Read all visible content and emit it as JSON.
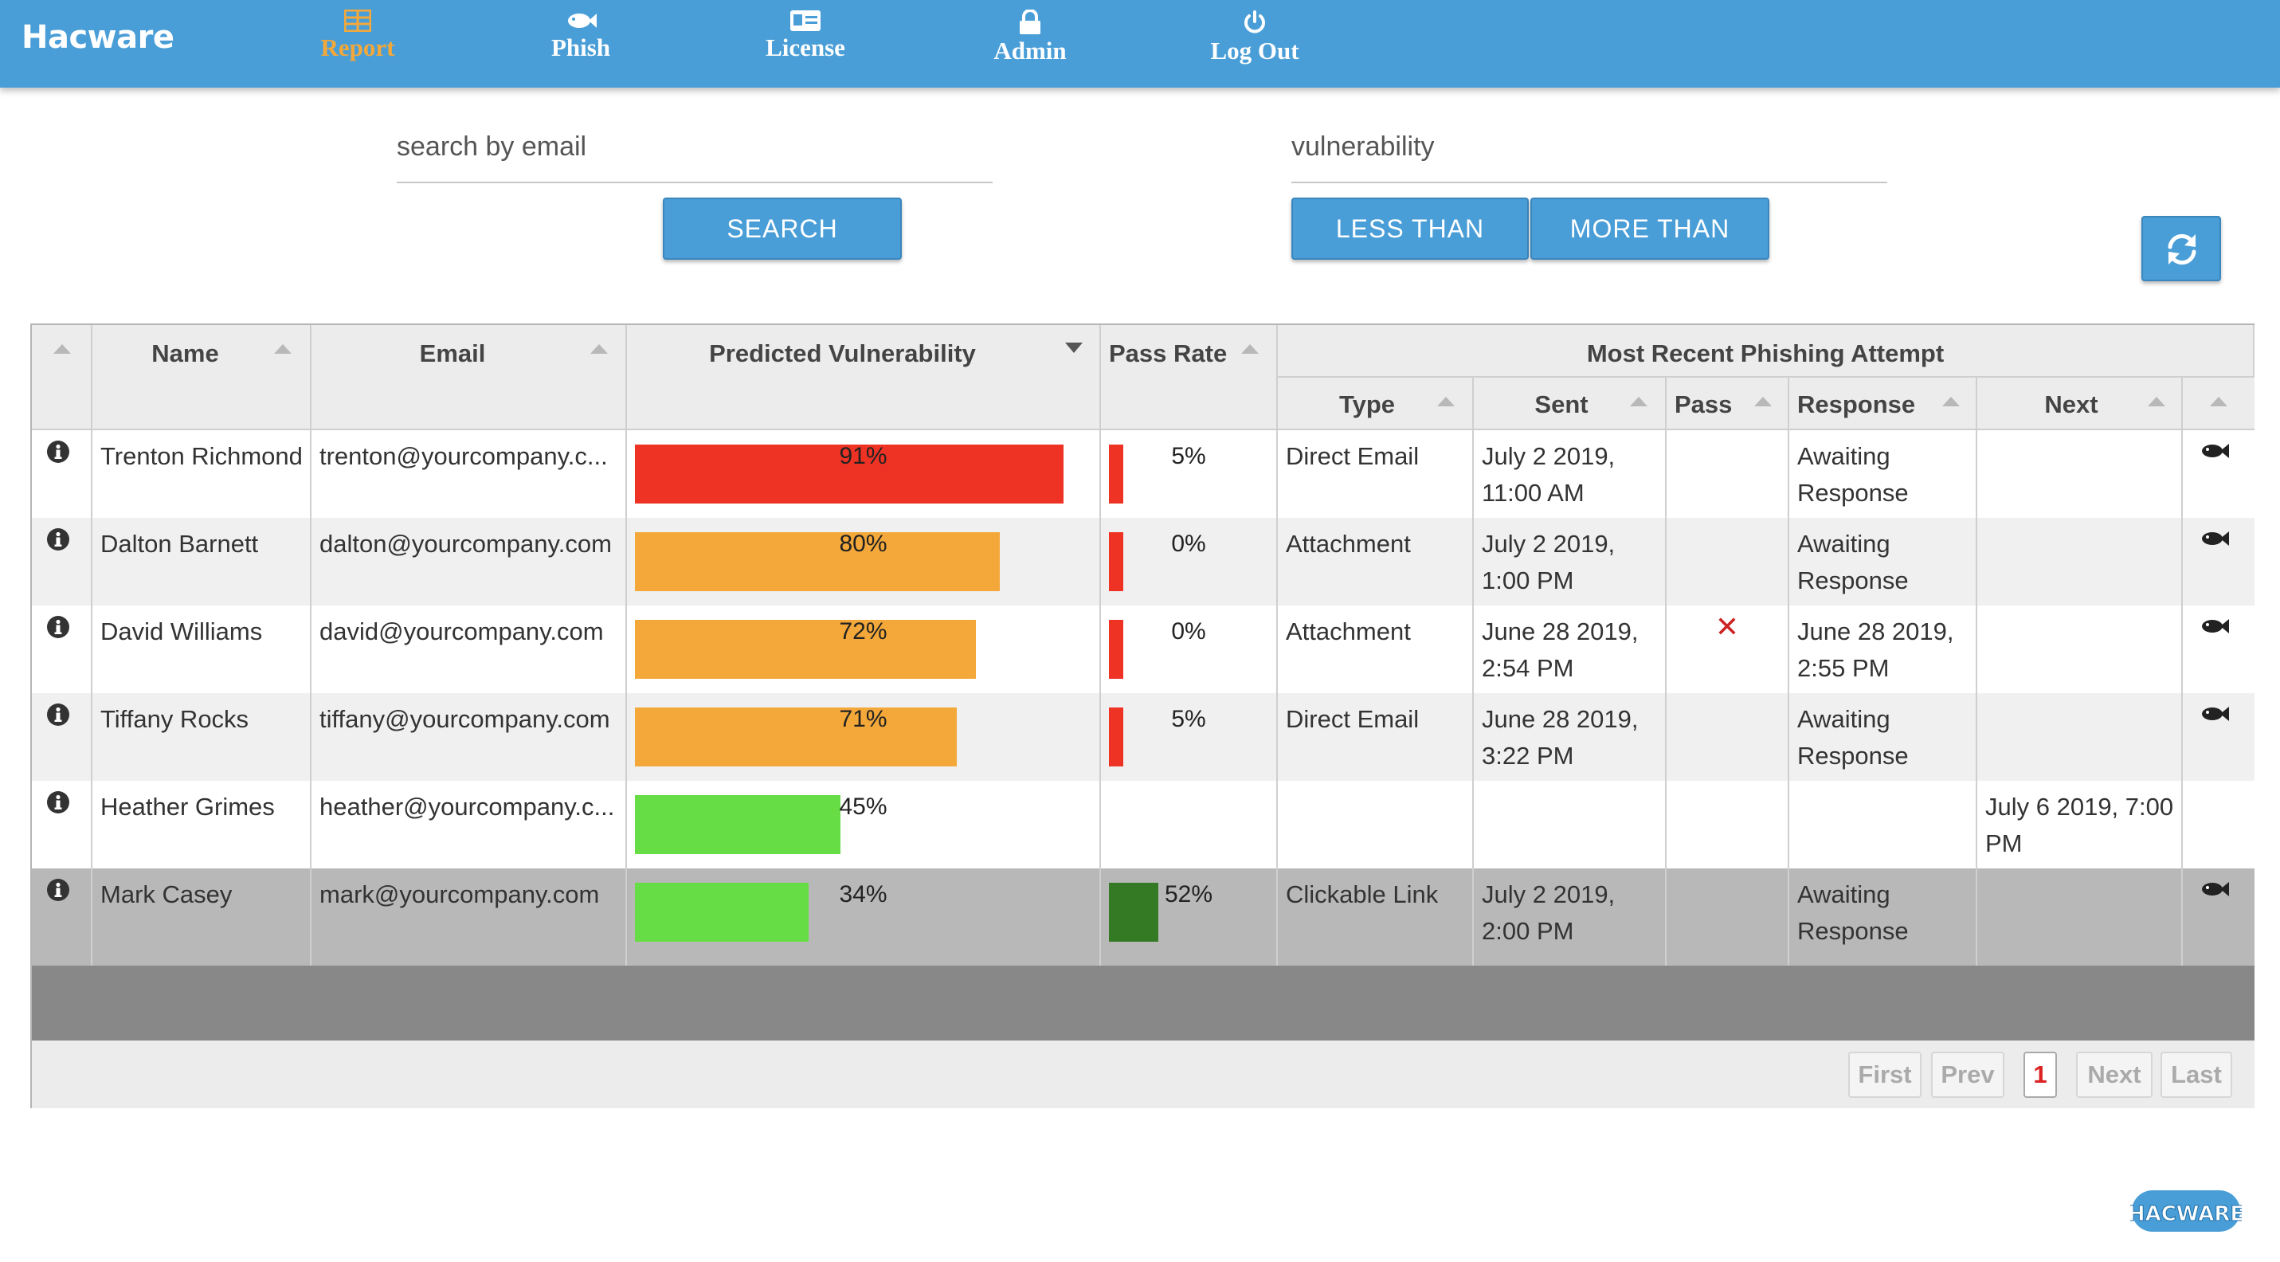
{
  "brand": "Hacware",
  "nav": [
    {
      "label": "Report",
      "icon": "table-icon",
      "active": true
    },
    {
      "label": "Phish",
      "icon": "fish-icon"
    },
    {
      "label": "License",
      "icon": "id-card-icon"
    },
    {
      "label": "Admin",
      "icon": "lock-icon"
    },
    {
      "label": "Log Out",
      "icon": "power-icon"
    }
  ],
  "search": {
    "email_placeholder": "search by email",
    "vuln_placeholder": "vulnerability",
    "search_label": "SEARCH",
    "less_label": "LESS THAN",
    "more_label": "MORE THAN"
  },
  "headers": {
    "name": "Name",
    "email": "Email",
    "vulnerability": "Predicted Vulnerability",
    "pass_rate": "Pass Rate",
    "group": "Most Recent Phishing Attempt",
    "type": "Type",
    "sent": "Sent",
    "pass": "Pass",
    "response": "Response",
    "next": "Next"
  },
  "rows": [
    {
      "name": "Trenton Richmond",
      "email": "trenton@yourcompany.c...",
      "vuln": 91,
      "vuln_label": "91%",
      "vuln_color": "#ee3224",
      "pass_rate": 5,
      "pass_label": "5%",
      "pass_color": "#ee3224",
      "type": "Direct Email",
      "sent": "July 2 2019, 11:00 AM",
      "pass": "",
      "response": "Awaiting Response",
      "next": "",
      "fish": true
    },
    {
      "name": "Dalton Barnett",
      "email": "dalton@yourcompany.com",
      "vuln": 80,
      "vuln_label": "80%",
      "vuln_color": "#f4a83a",
      "pass_rate": 0,
      "pass_label": "0%",
      "pass_color": "#ee3224",
      "type": "Attachment",
      "sent": "July 2 2019, 1:00 PM",
      "pass": "",
      "response": "Awaiting Response",
      "next": "",
      "fish": true
    },
    {
      "name": "David Williams",
      "email": "david@yourcompany.com",
      "vuln": 72,
      "vuln_label": "72%",
      "vuln_color": "#f4a83a",
      "pass_rate": 0,
      "pass_label": "0%",
      "pass_color": "#ee3224",
      "type": "Attachment",
      "sent": "June 28 2019, 2:54 PM",
      "pass": "✕",
      "response": "June 28 2019, 2:55 PM",
      "next": "",
      "fish": true
    },
    {
      "name": "Tiffany Rocks",
      "email": "tiffany@yourcompany.com",
      "vuln": 71,
      "vuln_label": "71%",
      "vuln_color": "#f4a83a",
      "pass_rate": 5,
      "pass_label": "5%",
      "pass_color": "#ee3224",
      "type": "Direct Email",
      "sent": "June 28 2019, 3:22 PM",
      "pass": "",
      "response": "Awaiting Response",
      "next": "",
      "fish": true
    },
    {
      "name": "Heather Grimes",
      "email": "heather@yourcompany.c...",
      "vuln": 45,
      "vuln_label": "45%",
      "vuln_color": "#66dd44",
      "pass_rate": null,
      "pass_label": "",
      "pass_color": "",
      "type": "",
      "sent": "",
      "pass": "",
      "response": "",
      "next": "July 6 2019, 7:00 PM",
      "fish": false
    },
    {
      "name": "Mark Casey",
      "email": "mark@yourcompany.com",
      "vuln": 34,
      "vuln_label": "34%",
      "vuln_color": "#66dd44",
      "pass_rate": 52,
      "pass_label": "52%",
      "pass_color": "#347a24",
      "type": "Clickable Link",
      "sent": "July 2 2019, 2:00 PM",
      "pass": "",
      "response": "Awaiting Response",
      "next": "",
      "fish": true
    }
  ],
  "pagination": {
    "first": "First",
    "prev": "Prev",
    "current": "1",
    "next": "Next",
    "last": "Last"
  },
  "logo_text": "HACWARE"
}
